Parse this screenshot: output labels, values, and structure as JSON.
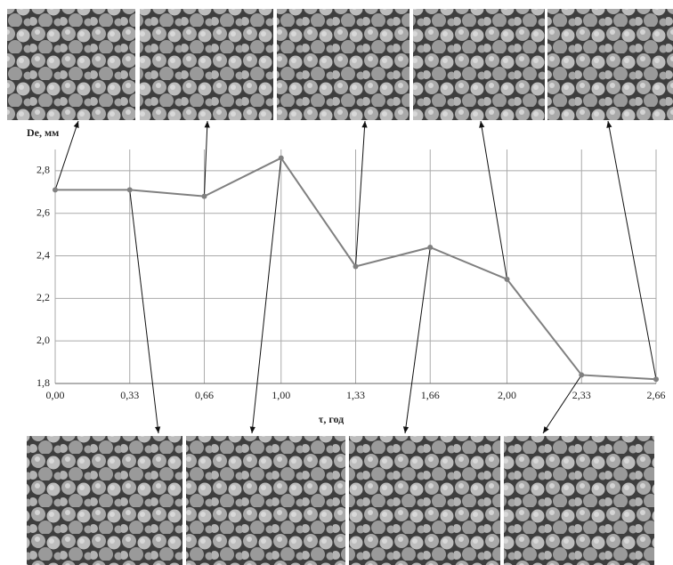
{
  "chart_data": {
    "type": "line",
    "x_label": "τ, год",
    "y_label": "De, мм",
    "xlim": [
      0,
      2.66
    ],
    "ylim": [
      1.8,
      2.9
    ],
    "xticks": [
      {
        "value": 0,
        "label": "0,00"
      },
      {
        "value": 0.33,
        "label": "0,33"
      },
      {
        "value": 0.66,
        "label": "0,66"
      },
      {
        "value": 1,
        "label": "1,00"
      },
      {
        "value": 1.33,
        "label": "1,33"
      },
      {
        "value": 1.66,
        "label": "1,66"
      },
      {
        "value": 2,
        "label": "2,00"
      },
      {
        "value": 2.33,
        "label": "2,33"
      },
      {
        "value": 2.66,
        "label": "2,66"
      }
    ],
    "yticks": [
      {
        "value": 1.8,
        "label": "1,8"
      },
      {
        "value": 2.0,
        "label": "2,0"
      },
      {
        "value": 2.2,
        "label": "2,2"
      },
      {
        "value": 2.4,
        "label": "2,4"
      },
      {
        "value": 2.6,
        "label": "2,6"
      },
      {
        "value": 2.8,
        "label": "2,8"
      }
    ],
    "grid": true,
    "series": [
      {
        "color": "#808080",
        "x": [
          0,
          0.33,
          0.66,
          1.0,
          1.33,
          1.66,
          2.0,
          2.33,
          2.66
        ],
        "values": [
          2.71,
          2.71,
          2.68,
          2.86,
          2.35,
          2.44,
          2.29,
          1.84,
          1.82
        ]
      }
    ]
  }
}
